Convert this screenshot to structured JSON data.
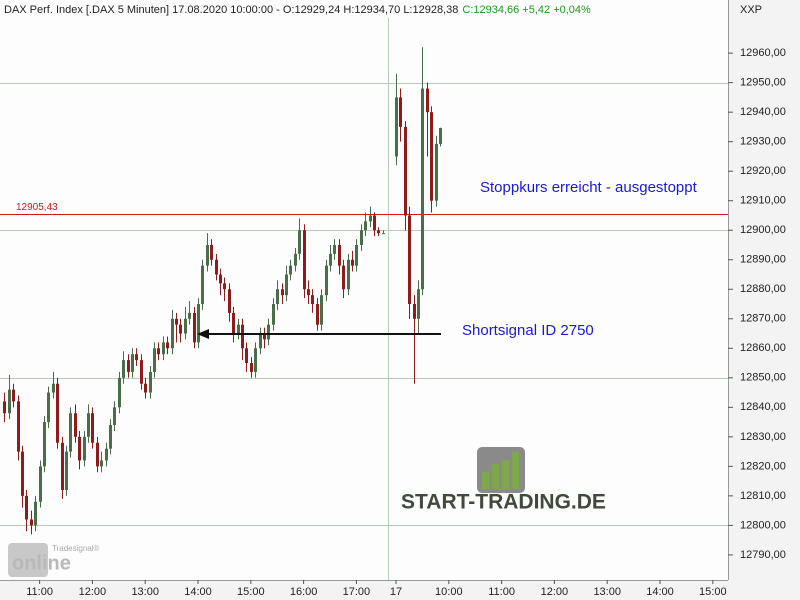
{
  "chart_data": {
    "type": "candlestick",
    "title": "DAX Perf. Index [.DAX  5 Minuten] 17.08.2020 10:00:00 - O:12929,24 H:12934,70 L:12928,38",
    "title_change": "C:12934,66 +5,42 +0,04%",
    "symbol_label": "XXP",
    "up_color": "#4a6e4a",
    "down_color": "#8e1c1c",
    "ylim": [
      12781.5,
      12978
    ],
    "yticks": [
      {
        "value": 12790,
        "label": "12790,00"
      },
      {
        "value": 12800,
        "label": "12800,00"
      },
      {
        "value": 12810,
        "label": "12810,00"
      },
      {
        "value": 12820,
        "label": "12820,00"
      },
      {
        "value": 12830,
        "label": "12830,00"
      },
      {
        "value": 12840,
        "label": "12840,00"
      },
      {
        "value": 12850,
        "label": "12850,00"
      },
      {
        "value": 12860,
        "label": "12860,00"
      },
      {
        "value": 12870,
        "label": "12870,00"
      },
      {
        "value": 12880,
        "label": "12880,00"
      },
      {
        "value": 12890,
        "label": "12890,00"
      },
      {
        "value": 12900,
        "label": "12900,00"
      },
      {
        "value": 12910,
        "label": "12910,00"
      },
      {
        "value": 12920,
        "label": "12920,00"
      },
      {
        "value": 12930,
        "label": "12930,00"
      },
      {
        "value": 12940,
        "label": "12940,00"
      },
      {
        "value": 12950,
        "label": "12950,00"
      },
      {
        "value": 12960,
        "label": "12960,00"
      }
    ],
    "ygrid": [
      12800,
      12850,
      12900,
      12950
    ],
    "xlim": [
      -1,
      164.45
    ],
    "xticks": [
      {
        "value": 8,
        "label": "11:00"
      },
      {
        "value": 20,
        "label": "12:00"
      },
      {
        "value": 32,
        "label": "13:00"
      },
      {
        "value": 44,
        "label": "14:00"
      },
      {
        "value": 56,
        "label": "15:00"
      },
      {
        "value": 68,
        "label": "16:00"
      },
      {
        "value": 80,
        "label": "17:00"
      },
      {
        "value": 89,
        "label": "17"
      },
      {
        "value": 101,
        "label": "10:00"
      },
      {
        "value": 113,
        "label": "11:00"
      },
      {
        "value": 125,
        "label": "12:00"
      },
      {
        "value": 137,
        "label": "13:00"
      },
      {
        "value": 149,
        "label": "14:00"
      },
      {
        "value": 161,
        "label": "15:00"
      }
    ],
    "stop_level": {
      "value": 12905.43,
      "label": "12905,43",
      "color": "#d01818"
    },
    "annotations": [
      "Stoppkurs erreicht - ausgestoppt",
      "Shortsignal ID 2750"
    ],
    "logo_text": "START-TRADING.DE",
    "watermark": [
      "Tradesignal®",
      "online"
    ],
    "open": [
      12842,
      12838,
      12846,
      12842,
      12825,
      12810,
      12802,
      12800,
      12808,
      12820,
      12835,
      12845,
      12848,
      12828,
      12812,
      12825,
      12838,
      12830,
      12822,
      12830,
      12838,
      12828,
      12820,
      12822,
      12826,
      12834,
      12840,
      12850,
      12856,
      12852,
      12858,
      12856,
      12848,
      12845,
      12852,
      12860,
      12858,
      12862,
      12860,
      12870,
      12868,
      12865,
      12870,
      12872,
      12862,
      12875,
      12888,
      12895,
      12890,
      12885,
      12882,
      12880,
      12872,
      12865,
      12868,
      12860,
      12855,
      12852,
      12860,
      12865,
      12863,
      12868,
      12875,
      12880,
      12878,
      12885,
      12888,
      12892,
      12900,
      12880,
      12878,
      12875,
      12868,
      12878,
      12888,
      12892,
      12895,
      12888,
      12880,
      12890,
      12888,
      12895,
      12900,
      12903,
      12905,
      12900,
      12899,
      null,
      null,
      12925,
      12945,
      12935,
      12905,
      12875,
      12870,
      12880,
      12948,
      12940,
      12910,
      12929.24
    ],
    "high": [
      12845,
      12851,
      12848,
      12844,
      12827,
      12812,
      12805,
      12810,
      12822,
      12837,
      12847,
      12852,
      12850,
      12830,
      12827,
      12840,
      12841,
      12832,
      12832,
      12841,
      12840,
      12830,
      12825,
      12828,
      12836,
      12842,
      12852,
      12859,
      12858,
      12860,
      12860,
      12858,
      12850,
      12854,
      12862,
      12862,
      12864,
      12864,
      12873,
      12872,
      12870,
      12874,
      12876,
      12874,
      12877,
      12890,
      12899,
      12897,
      12892,
      12887,
      12884,
      12882,
      12874,
      12870,
      12870,
      12862,
      12857,
      12862,
      12867,
      12867,
      12870,
      12877,
      12883,
      12882,
      12888,
      12890,
      12894,
      12904,
      12902,
      12883,
      12880,
      12877,
      12880,
      12890,
      12895,
      12897,
      12897,
      12890,
      12892,
      12893,
      12897,
      12902,
      12906,
      12908,
      12906,
      12901,
      12900,
      null,
      null,
      12953,
      12948,
      12937,
      12908,
      12878,
      12883,
      12962,
      12950,
      12942,
      12932,
      12934.7
    ],
    "low": [
      12835,
      12836,
      12840,
      12822,
      12806,
      12798,
      12797,
      12798,
      12806,
      12818,
      12833,
      12843,
      12826,
      12809,
      12810,
      12823,
      12828,
      12819,
      12820,
      12828,
      12826,
      12818,
      12818,
      12820,
      12824,
      12832,
      12838,
      12848,
      12850,
      12850,
      12854,
      12846,
      12843,
      12843,
      12850,
      12856,
      12856,
      12858,
      12858,
      12862,
      12862,
      12863,
      12868,
      12860,
      12860,
      12873,
      12886,
      12888,
      12883,
      12878,
      12876,
      12869,
      12862,
      12863,
      12856,
      12852,
      12850,
      12850,
      12858,
      12860,
      12861,
      12866,
      12873,
      12875,
      12876,
      12883,
      12886,
      12890,
      12877,
      12875,
      12872,
      12866,
      12866,
      12876,
      12886,
      12890,
      12885,
      12877,
      12878,
      12886,
      12886,
      12893,
      12898,
      12901,
      12898,
      12898,
      12899,
      null,
      null,
      12922,
      12930,
      12900,
      12870,
      12848,
      12865,
      12878,
      12925,
      12906,
      12908,
      12928.38
    ],
    "close": [
      12838,
      12846,
      12842,
      12825,
      12810,
      12802,
      12800,
      12808,
      12820,
      12835,
      12845,
      12848,
      12828,
      12812,
      12825,
      12838,
      12830,
      12822,
      12830,
      12838,
      12828,
      12820,
      12822,
      12826,
      12834,
      12840,
      12850,
      12856,
      12852,
      12858,
      12856,
      12848,
      12845,
      12852,
      12860,
      12858,
      12862,
      12860,
      12870,
      12868,
      12865,
      12870,
      12872,
      12862,
      12875,
      12888,
      12895,
      12890,
      12885,
      12882,
      12880,
      12872,
      12865,
      12868,
      12860,
      12855,
      12852,
      12860,
      12865,
      12863,
      12868,
      12875,
      12880,
      12878,
      12885,
      12888,
      12892,
      12900,
      12880,
      12878,
      12875,
      12868,
      12878,
      12888,
      12892,
      12895,
      12888,
      12880,
      12890,
      12888,
      12895,
      12900,
      12903,
      12905,
      12900,
      12899,
      12899,
      null,
      null,
      12945,
      12935,
      12905,
      12875,
      12870,
      12880,
      12948,
      12940,
      12910,
      12929.24,
      12934.66
    ]
  }
}
